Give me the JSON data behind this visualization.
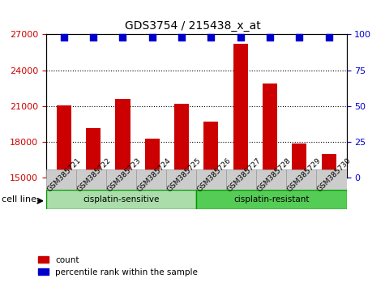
{
  "title": "GDS3754 / 215438_x_at",
  "categories": [
    "GSM385721",
    "GSM385722",
    "GSM385723",
    "GSM385724",
    "GSM385725",
    "GSM385726",
    "GSM385727",
    "GSM385728",
    "GSM385729",
    "GSM385730"
  ],
  "bar_values": [
    21100,
    19200,
    21600,
    18300,
    21200,
    19700,
    26200,
    22900,
    17900,
    17000
  ],
  "percentile_values": [
    100,
    100,
    100,
    100,
    100,
    100,
    100,
    100,
    100,
    100
  ],
  "bar_color": "#cc0000",
  "percentile_color": "#0000cc",
  "ylim_left": [
    15000,
    27000
  ],
  "ylim_right": [
    0,
    100
  ],
  "yticks_left": [
    15000,
    18000,
    21000,
    24000,
    27000
  ],
  "yticks_right": [
    0,
    25,
    50,
    75,
    100
  ],
  "grid_color": "#000000",
  "bg_plot": "#ffffff",
  "tick_area_bg": "#cccccc",
  "cisplatin_sensitive_color": "#aaddaa",
  "cisplatin_resistant_color": "#55cc55",
  "cisplatin_sensitive_label": "cisplatin-sensitive",
  "cisplatin_resistant_label": "cisplatin-resistant",
  "cell_line_label": "cell line",
  "legend_count_label": "count",
  "legend_percentile_label": "percentile rank within the sample",
  "n_sensitive": 5,
  "n_resistant": 5
}
